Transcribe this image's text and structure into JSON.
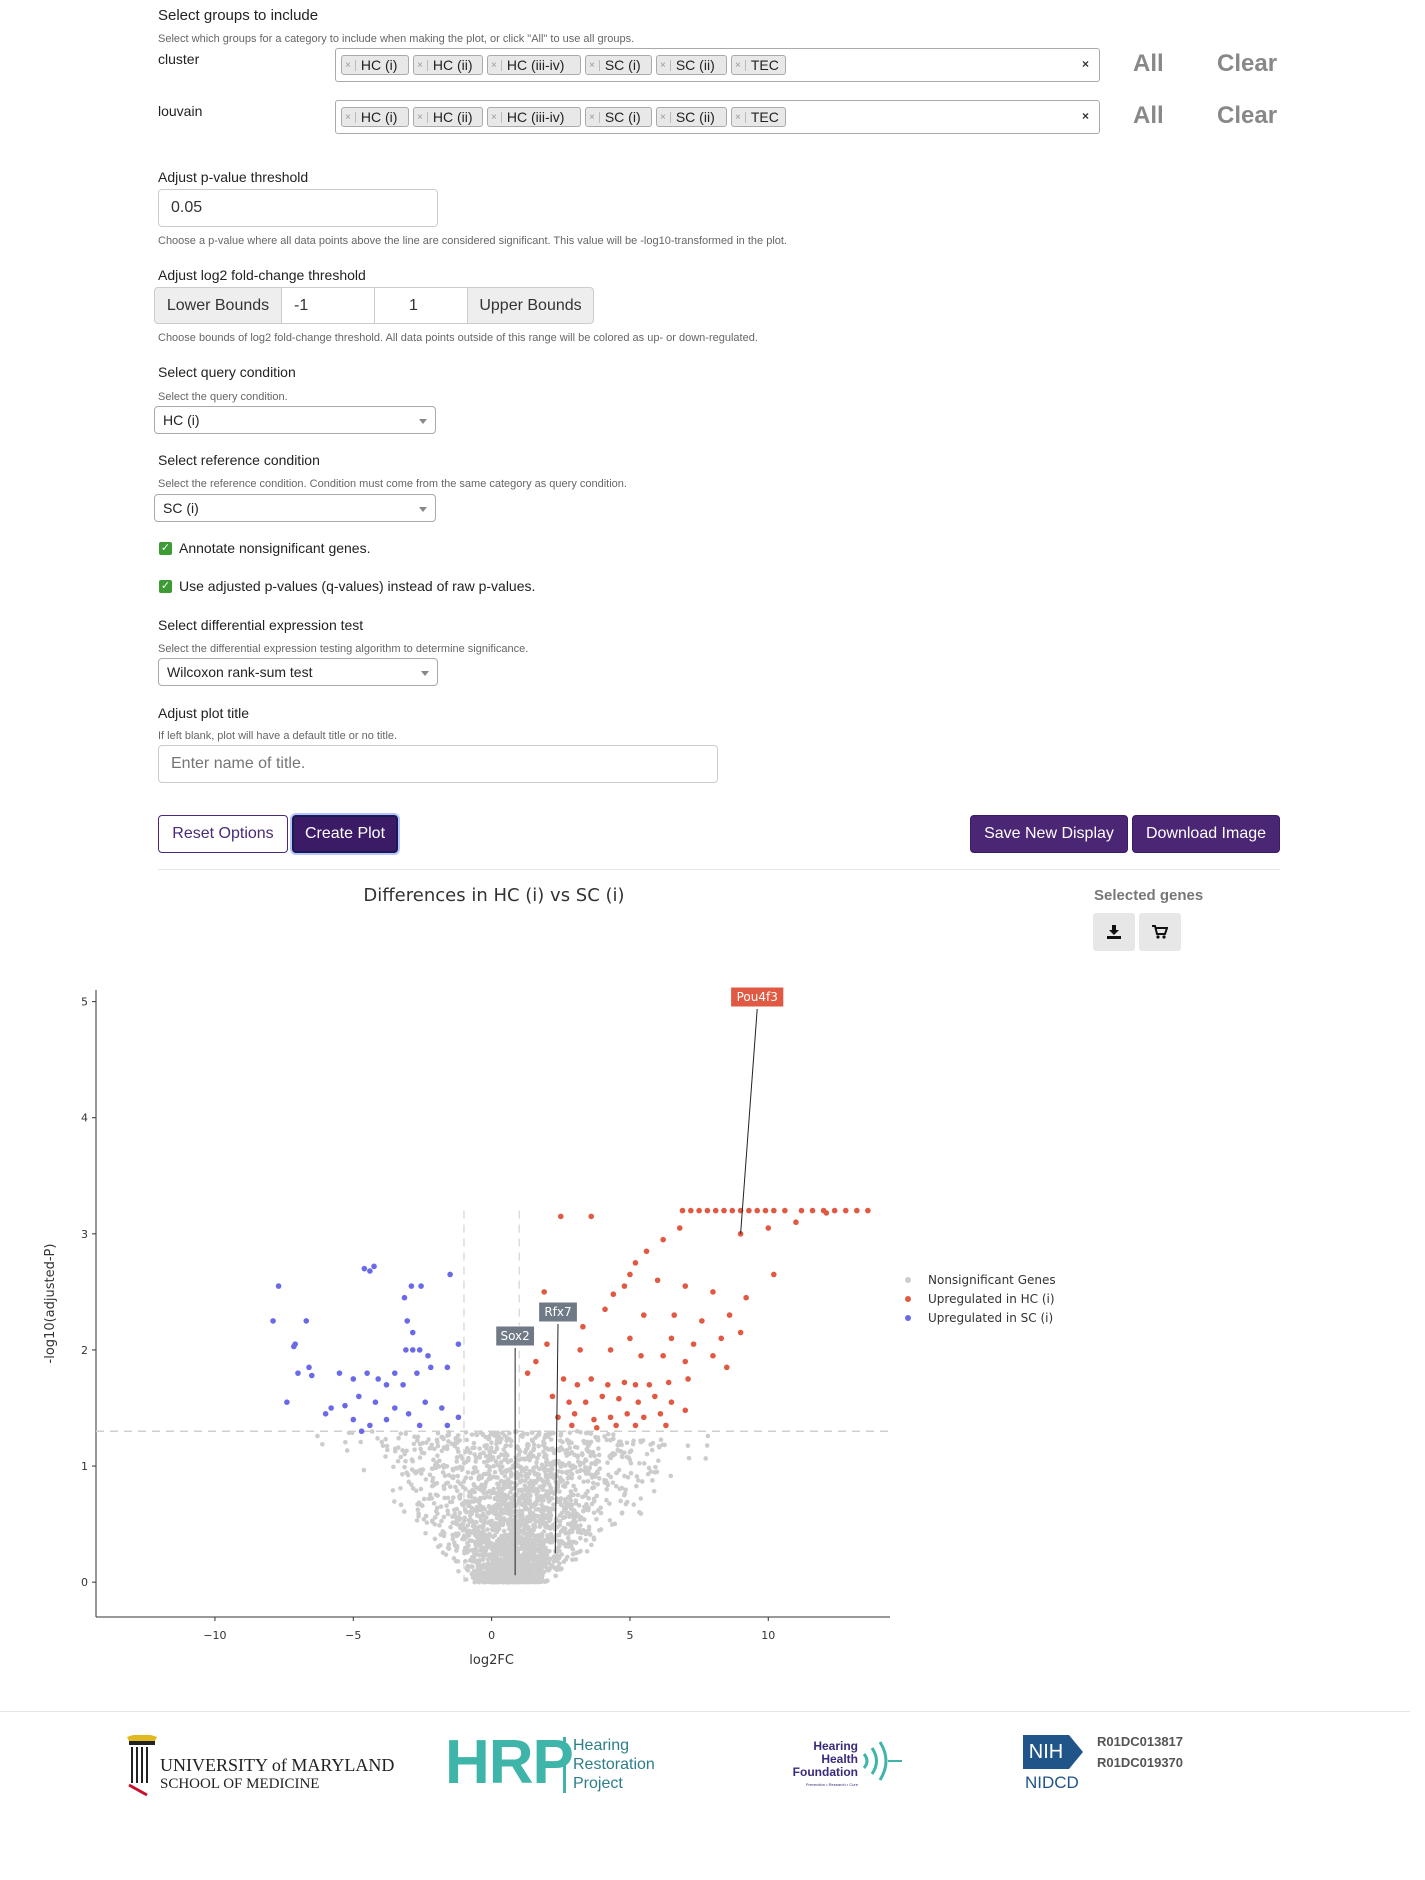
{
  "groups": {
    "title": "Select groups to include",
    "help": "Select which groups for a category to include when making the plot, or click \"All\" to use all groups.",
    "rows": [
      {
        "name": "cluster",
        "tags": [
          "HC (i)",
          "HC (ii)",
          "HC (iii-iv)",
          "SC (i)",
          "SC (ii)",
          "TEC"
        ],
        "all_label": "All",
        "clear_label": "Clear"
      },
      {
        "name": "louvain",
        "tags": [
          "HC (i)",
          "HC (ii)",
          "HC (iii-iv)",
          "SC (i)",
          "SC (ii)",
          "TEC"
        ],
        "all_label": "All",
        "clear_label": "Clear"
      }
    ],
    "remove_glyph": "×"
  },
  "pvalue": {
    "label": "Adjust p-value threshold",
    "value": "0.05",
    "help": "Choose a p-value where all data points above the line are considered significant. This value will be -log10-transformed in the plot."
  },
  "fc": {
    "label": "Adjust log2 fold-change threshold",
    "lower_label": "Lower Bounds",
    "lower_value": "-1",
    "upper_value": "1",
    "upper_label": "Upper Bounds",
    "help": "Choose bounds of log2 fold-change threshold. All data points outside of this range will be colored as up- or down-regulated."
  },
  "query": {
    "label": "Select query condition",
    "help": "Select the query condition.",
    "value": "HC (i)"
  },
  "reference": {
    "label": "Select reference condition",
    "help": "Select the reference condition. Condition must come from the same category as query condition.",
    "value": "SC (i)"
  },
  "checkboxes": [
    {
      "label": "Annotate nonsignificant genes.",
      "checked": true
    },
    {
      "label": "Use adjusted p-values (q-values) instead of raw p-values.",
      "checked": true
    }
  ],
  "de_test": {
    "label": "Select differential expression test",
    "help": "Select the differential expression testing algorithm to determine significance.",
    "value": "Wilcoxon rank-sum test"
  },
  "plot_title": {
    "label": "Adjust plot title",
    "help": "If left blank, plot will have a default title or no title.",
    "placeholder": "Enter name of title."
  },
  "buttons": {
    "reset": "Reset Options",
    "create": "Create Plot",
    "save": "Save New Display",
    "download": "Download Image"
  },
  "selected_genes": {
    "title": "Selected genes",
    "download_icon": "download-icon",
    "cart_icon": "cart-icon"
  },
  "chart_data": {
    "type": "scatter",
    "title": "Differences in HC (i) vs SC (i)",
    "xlabel": "log2FC",
    "ylabel": "-log10(adjusted-P)",
    "xlim": [
      -14.3,
      14.4
    ],
    "ylim": [
      -0.3,
      5.1
    ],
    "x_ticks": [
      -10,
      -5,
      0,
      5,
      10
    ],
    "y_ticks": [
      0,
      1,
      2,
      3,
      4,
      5
    ],
    "thresholds": {
      "y": 1.3,
      "x": [
        -1,
        1
      ]
    },
    "colors": {
      "nonsig": "#cccccc",
      "up": "#e05a43",
      "down": "#6a6ae8"
    },
    "legend_position": "right",
    "series": [
      {
        "name": "Nonsignificant Genes",
        "color": "#cccccc",
        "note": "dense cloud of several thousand points between x≈-6 and x≈6, y 0 to 1.3 (approximate)"
      },
      {
        "name": "Upregulated in HC (i)",
        "color": "#e05a43",
        "points": [
          [
            2.5,
            3.15
          ],
          [
            3.6,
            3.15
          ],
          [
            6.9,
            3.2
          ],
          [
            7.2,
            3.2
          ],
          [
            7.5,
            3.2
          ],
          [
            7.8,
            3.2
          ],
          [
            8.1,
            3.2
          ],
          [
            8.4,
            3.2
          ],
          [
            8.7,
            3.2
          ],
          [
            9.0,
            3.2
          ],
          [
            9.3,
            3.2
          ],
          [
            9.6,
            3.2
          ],
          [
            9.9,
            3.2
          ],
          [
            10.2,
            3.2
          ],
          [
            10.6,
            3.2
          ],
          [
            11.2,
            3.2
          ],
          [
            11.6,
            3.2
          ],
          [
            12.0,
            3.2
          ],
          [
            12.4,
            3.2
          ],
          [
            12.8,
            3.2
          ],
          [
            13.2,
            3.2
          ],
          [
            13.6,
            3.2
          ],
          [
            12.1,
            3.18
          ],
          [
            11.0,
            3.1
          ],
          [
            10.0,
            3.05
          ],
          [
            9.0,
            3.0
          ],
          [
            6.8,
            3.05
          ],
          [
            6.2,
            2.95
          ],
          [
            5.6,
            2.85
          ],
          [
            5.2,
            2.75
          ],
          [
            5.0,
            2.65
          ],
          [
            4.8,
            2.55
          ],
          [
            6.0,
            2.6
          ],
          [
            7.0,
            2.55
          ],
          [
            8.0,
            2.5
          ],
          [
            9.2,
            2.45
          ],
          [
            10.2,
            2.65
          ],
          [
            4.4,
            2.48
          ],
          [
            4.1,
            2.35
          ],
          [
            5.5,
            2.3
          ],
          [
            6.6,
            2.3
          ],
          [
            7.6,
            2.25
          ],
          [
            8.6,
            2.3
          ],
          [
            3.3,
            2.2
          ],
          [
            5.0,
            2.1
          ],
          [
            6.5,
            2.1
          ],
          [
            7.3,
            2.05
          ],
          [
            8.3,
            2.1
          ],
          [
            9.0,
            2.15
          ],
          [
            3.2,
            2.0
          ],
          [
            4.3,
            2.0
          ],
          [
            5.4,
            1.95
          ],
          [
            6.2,
            1.95
          ],
          [
            7.0,
            1.9
          ],
          [
            8.0,
            1.95
          ],
          [
            2.6,
            1.75
          ],
          [
            3.1,
            1.7
          ],
          [
            3.6,
            1.75
          ],
          [
            4.2,
            1.7
          ],
          [
            4.8,
            1.72
          ],
          [
            5.2,
            1.7
          ],
          [
            5.7,
            1.7
          ],
          [
            6.4,
            1.72
          ],
          [
            7.1,
            1.75
          ],
          [
            8.5,
            1.85
          ],
          [
            2.2,
            1.6
          ],
          [
            2.8,
            1.55
          ],
          [
            3.4,
            1.55
          ],
          [
            4.0,
            1.6
          ],
          [
            4.6,
            1.58
          ],
          [
            5.3,
            1.55
          ],
          [
            5.9,
            1.6
          ],
          [
            6.5,
            1.55
          ],
          [
            2.4,
            1.42
          ],
          [
            3.0,
            1.45
          ],
          [
            3.7,
            1.4
          ],
          [
            4.3,
            1.42
          ],
          [
            4.9,
            1.45
          ],
          [
            5.5,
            1.42
          ],
          [
            6.1,
            1.45
          ],
          [
            7.0,
            1.48
          ],
          [
            2.9,
            1.35
          ],
          [
            3.8,
            1.33
          ],
          [
            4.5,
            1.35
          ],
          [
            5.2,
            1.35
          ],
          [
            6.3,
            1.35
          ],
          [
            1.3,
            1.8
          ],
          [
            1.6,
            1.9
          ],
          [
            2.0,
            2.05
          ],
          [
            1.9,
            2.5
          ]
        ]
      },
      {
        "name": "Upregulated in SC (i)",
        "color": "#6a6ae8",
        "points": [
          [
            -7.7,
            2.55
          ],
          [
            -7.9,
            2.25
          ],
          [
            -6.7,
            2.25
          ],
          [
            -7.1,
            2.05
          ],
          [
            -7.15,
            2.03
          ],
          [
            -4.6,
            2.7
          ],
          [
            -4.25,
            2.72
          ],
          [
            -4.4,
            2.68
          ],
          [
            -2.9,
            2.55
          ],
          [
            -2.55,
            2.55
          ],
          [
            -1.5,
            2.65
          ],
          [
            -3.15,
            2.45
          ],
          [
            -3.05,
            2.25
          ],
          [
            -2.85,
            2.15
          ],
          [
            -3.1,
            2.0
          ],
          [
            -2.85,
            2.0
          ],
          [
            -2.6,
            2.0
          ],
          [
            -2.3,
            1.95
          ],
          [
            -1.2,
            2.05
          ],
          [
            -7.0,
            1.8
          ],
          [
            -6.5,
            1.78
          ],
          [
            -6.6,
            1.85
          ],
          [
            -7.4,
            1.55
          ],
          [
            -5.5,
            1.8
          ],
          [
            -5.0,
            1.75
          ],
          [
            -4.5,
            1.8
          ],
          [
            -4.1,
            1.75
          ],
          [
            -3.8,
            1.7
          ],
          [
            -3.5,
            1.8
          ],
          [
            -3.2,
            1.7
          ],
          [
            -2.7,
            1.8
          ],
          [
            -2.2,
            1.85
          ],
          [
            -1.6,
            1.85
          ],
          [
            -5.8,
            1.5
          ],
          [
            -5.3,
            1.52
          ],
          [
            -4.8,
            1.6
          ],
          [
            -4.2,
            1.55
          ],
          [
            -3.5,
            1.5
          ],
          [
            -3.0,
            1.45
          ],
          [
            -2.4,
            1.55
          ],
          [
            -1.8,
            1.5
          ],
          [
            -6.0,
            1.45
          ],
          [
            -5.0,
            1.4
          ],
          [
            -4.4,
            1.35
          ],
          [
            -3.8,
            1.4
          ],
          [
            -2.6,
            1.35
          ],
          [
            -1.6,
            1.35
          ],
          [
            -1.2,
            1.42
          ],
          [
            -4.7,
            1.3
          ]
        ]
      }
    ],
    "annotations": [
      {
        "label": "Pou4f3",
        "x": 9.0,
        "y": 3.0,
        "color": "#e05a43"
      },
      {
        "label": "Rfx7",
        "x": 2.3,
        "y": 0.25,
        "color": "#707a86"
      },
      {
        "label": "Sox2",
        "x": 0.85,
        "y": 0.06,
        "color": "#707a86"
      }
    ]
  },
  "footer": {
    "umd_line1": "UNIVERSITY of MARYLAND",
    "umd_line2": "SCHOOL OF MEDICINE",
    "hrp_mark": "HRP",
    "hrp_lines": [
      "Hearing",
      "Restoration",
      "Project"
    ],
    "hhf_lines": [
      "Hearing",
      "Health",
      "Foundation"
    ],
    "hhf_tagline": "Prevention • Research • Cure",
    "nih_mark": "NIH",
    "nidcd": "NIDCD",
    "grants": [
      "R01DC013817",
      "R01DC019370"
    ]
  }
}
